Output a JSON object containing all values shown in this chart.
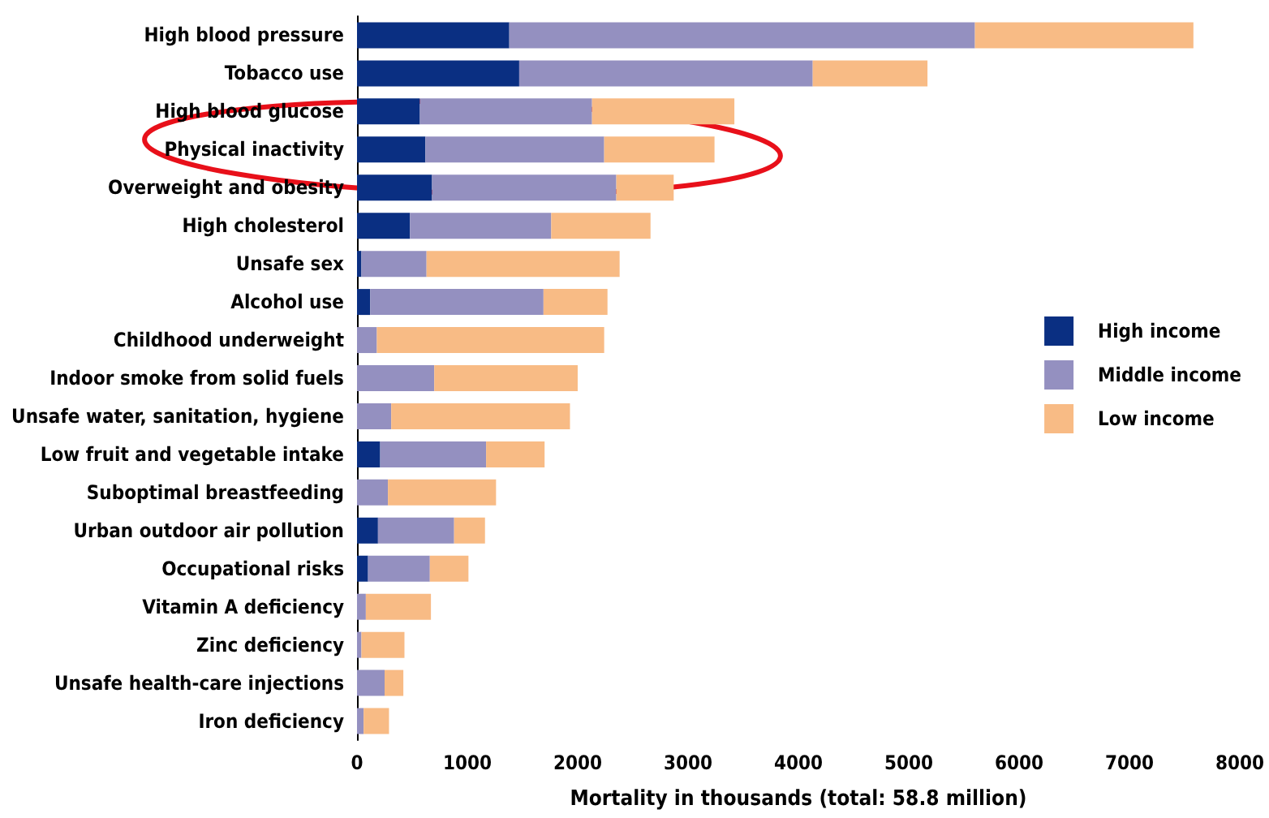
{
  "chart_data": {
    "type": "bar",
    "orientation": "horizontal",
    "stacked": true,
    "xlabel": "Mortality in thousands (total: 58.8 million)",
    "categories": [
      "High blood pressure",
      "Tobacco use",
      "High blood glucose",
      "Physical inactivity",
      "Overweight and obesity",
      "High cholesterol",
      "Unsafe sex",
      "Alcohol use",
      "Childhood underweight",
      "Indoor smoke from solid fuels",
      "Unsafe water, sanitation, hygiene",
      "Low fruit and vegetable intake",
      "Suboptimal breastfeeding",
      "Urban outdoor air pollution",
      "Occupational risks",
      "Vitamin A deficiency",
      "Zinc deficiency",
      "Unsafe health-care injections",
      "Iron deficiency"
    ],
    "series": [
      {
        "name": "High income",
        "color": "#0a2f82",
        "values": [
          1380,
          1470,
          570,
          620,
          680,
          480,
          40,
          120,
          0,
          0,
          0,
          210,
          0,
          190,
          100,
          0,
          0,
          0,
          0
        ]
      },
      {
        "name": "Middle income",
        "color": "#9490c0",
        "values": [
          4220,
          2660,
          1560,
          1620,
          1670,
          1280,
          590,
          1570,
          180,
          700,
          310,
          960,
          280,
          690,
          560,
          80,
          40,
          250,
          60
        ]
      },
      {
        "name": "Low income",
        "color": "#f8bb85",
        "values": [
          1980,
          1040,
          1290,
          1000,
          520,
          900,
          1750,
          580,
          2060,
          1300,
          1620,
          530,
          980,
          280,
          350,
          590,
          390,
          170,
          230
        ]
      }
    ],
    "xlim": [
      0,
      8000
    ],
    "xticks": [
      0,
      1000,
      2000,
      3000,
      4000,
      5000,
      6000,
      7000,
      8000
    ],
    "grid": false,
    "legend": "right"
  }
}
